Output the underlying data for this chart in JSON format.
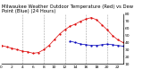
{
  "title": "Milwaukee Weather Outdoor Temperature (Red) vs Dew Point (Blue) (24 Hours)",
  "hours": [
    0,
    1,
    2,
    3,
    4,
    5,
    6,
    7,
    8,
    9,
    10,
    11,
    12,
    13,
    14,
    15,
    16,
    17,
    18,
    19,
    20,
    21,
    22,
    23
  ],
  "temp": [
    36,
    34,
    32,
    30,
    28,
    27,
    25,
    26,
    30,
    36,
    44,
    52,
    58,
    63,
    66,
    70,
    73,
    75,
    72,
    65,
    58,
    50,
    44,
    40
  ],
  "dew": [
    null,
    null,
    null,
    null,
    null,
    null,
    null,
    null,
    null,
    null,
    null,
    null,
    null,
    42,
    40,
    38,
    37,
    36,
    36,
    37,
    38,
    37,
    36,
    35
  ],
  "temp_color": "#dd0000",
  "dew_color": "#0000bb",
  "bg_color": "#ffffff",
  "grid_color": "#999999",
  "ylim_min": 10,
  "ylim_max": 80,
  "yticks": [
    10,
    20,
    30,
    40,
    50,
    60,
    70,
    80
  ],
  "ytick_labels": [
    "10",
    "20",
    "30",
    "40",
    "50",
    "60",
    "70",
    "80"
  ],
  "vgrid_hours": [
    4,
    8,
    12,
    16,
    20
  ],
  "xlim_min": 0,
  "xlim_max": 23,
  "xlabel_hours": [
    0,
    2,
    4,
    6,
    8,
    10,
    12,
    14,
    16,
    18,
    20,
    22
  ],
  "title_fontsize": 3.8,
  "tick_fontsize": 3.2,
  "marker_size": 1.2,
  "line_width": 0.5
}
